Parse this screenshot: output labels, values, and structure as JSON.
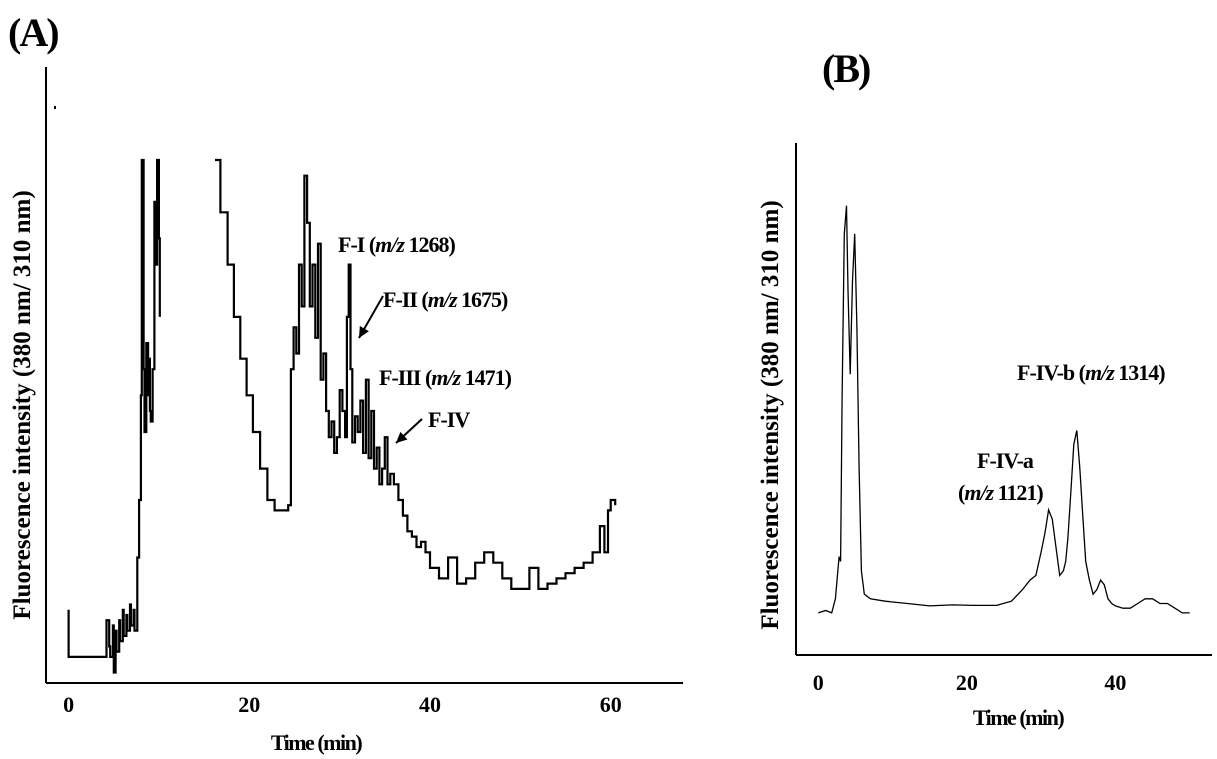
{
  "panels": {
    "A": {
      "label": "(A)"
    },
    "B": {
      "label": "(B)"
    }
  },
  "chart_data": [
    {
      "type": "line",
      "panel": "(A)",
      "xlabel": "Time (min)",
      "ylabel": "Fluorescence intensity (380 nm/ 310 nm)",
      "xticks": [
        0,
        20,
        40,
        60
      ],
      "xlim": [
        -2.5,
        68
      ],
      "ylim": [
        0,
        100
      ],
      "annotations": [
        {
          "text_pre": "F-I (",
          "text_ital": "m/z",
          "text_post": " 1268)",
          "x": 30.7,
          "y": 73
        },
        {
          "text_pre": "F-II (",
          "text_ital": "m/z",
          "text_post": " 1675)",
          "x": 31,
          "y": 64
        },
        {
          "text_pre": "F-III (",
          "text_ital": "m/z",
          "text_post": " 1471)",
          "x": 32.9,
          "y": 57
        },
        {
          "text_pre": "F-IV",
          "text_ital": "",
          "text_post": "",
          "x": 35,
          "y": 44
        }
      ],
      "series": [
        {
          "x": [
            0,
            0,
            0.3,
            4.1,
            4.2,
            4.5,
            4.6,
            4.9,
            5.0,
            5.2,
            5.3,
            5.6,
            5.7,
            6.0,
            6.1,
            6.4,
            6.5,
            6.8,
            6.9,
            7.2,
            7.3,
            7.6,
            7.8,
            8.0,
            8.1,
            8.3,
            8.4,
            8.6,
            8.8,
            8.9,
            9.0,
            9.1,
            9.3,
            9.5,
            9.6,
            9.8,
            10.0,
            10.1
          ],
          "y": [
            14,
            5,
            5,
            5,
            12,
            7,
            5,
            11,
            2,
            10,
            6,
            12,
            8,
            14,
            9,
            13,
            10,
            15,
            11,
            14,
            10,
            24,
            35,
            55,
            100,
            60,
            48,
            65,
            55,
            62,
            52,
            50,
            60,
            92,
            80,
            100,
            85,
            70
          ]
        },
        {
          "x": [
            16.2,
            16.8,
            17.6,
            18.3,
            19.0,
            19.7,
            20.4,
            21.2,
            22.0,
            22.8,
            23.6,
            24.3,
            24.6,
            24.9,
            25.2,
            25.5,
            25.8,
            26.1,
            26.4,
            26.7,
            27.0,
            27.3,
            27.6,
            27.9,
            28.2,
            28.5,
            28.8,
            29.1,
            29.4,
            29.7,
            30.0,
            30.3,
            30.6,
            30.8,
            31.0,
            31.2,
            31.4,
            31.7,
            32.0,
            32.3,
            32.6,
            32.9,
            33.2,
            33.5,
            33.8,
            34.1,
            34.4,
            34.7,
            35.0,
            35.3,
            35.6,
            36.0,
            36.5,
            37.0,
            37.5,
            38.0,
            38.5,
            39.0,
            39.5,
            40.0,
            41.0,
            42.0,
            43.0,
            44.0,
            45.0,
            46.0,
            47.0,
            48.0,
            49.0,
            50.0,
            51.0,
            52.0,
            53.0,
            54.0,
            55.0,
            56.0,
            57.0,
            58.0,
            58.8,
            59.3,
            59.7,
            60.0,
            60.5
          ],
          "y": [
            100,
            90,
            80,
            70,
            62,
            55,
            48,
            41,
            35,
            33,
            33,
            34,
            60,
            68,
            63,
            80,
            72,
            97,
            88,
            72,
            80,
            66,
            84,
            58,
            63,
            52,
            47,
            50,
            44,
            47,
            56,
            52,
            47,
            70,
            80,
            60,
            46,
            51,
            48,
            54,
            44,
            58,
            43,
            52,
            41,
            45,
            38,
            41,
            47,
            38,
            40,
            38,
            35,
            32,
            29,
            28,
            26,
            27,
            25,
            22,
            20,
            24,
            19,
            20,
            23,
            25,
            23,
            20,
            18,
            18,
            22,
            18,
            19,
            20,
            21,
            22,
            23,
            25,
            30,
            25,
            33,
            35,
            34
          ]
        }
      ]
    },
    {
      "type": "line",
      "panel": "(B)",
      "xlabel": "Time (min)",
      "ylabel": "Fluorescence intensity (380 nm/ 310 nm)",
      "xticks": [
        0,
        20,
        40
      ],
      "xlim": [
        -3,
        53
      ],
      "ylim": [
        0,
        100
      ],
      "annotations": [
        {
          "line1": "F-IV-b (",
          "ital1": "m/z",
          "post1": " 1314)",
          "x": 34.8,
          "y": 52
        },
        {
          "line1": "F-IV-a",
          "line2_pre": "(",
          "ital2": "m/z",
          "post2": " 1121)",
          "x": 31.5,
          "y": 29
        }
      ],
      "series": [
        {
          "x": [
            0,
            1.0,
            1.8,
            2.3,
            2.8,
            3.0,
            3.2,
            3.5,
            3.8,
            4.0,
            4.3,
            4.6,
            4.9,
            5.2,
            5.5,
            5.8,
            6.2,
            7.0,
            9.0,
            12.0,
            15.0,
            18.0,
            21.0,
            24.0,
            26.0,
            27.5,
            28.5,
            29.3,
            30.0,
            30.5,
            31.0,
            31.5,
            32.0,
            32.5,
            33.0,
            33.3,
            33.6,
            34.0,
            34.4,
            34.8,
            35.2,
            35.6,
            36.0,
            36.5,
            37.0,
            37.5,
            38.0,
            38.5,
            39.0,
            39.5,
            40.0,
            41.0,
            42.0,
            43.0,
            44.0,
            45.0,
            46.0,
            47.0,
            48.0,
            49.0,
            50.0
          ],
          "y": [
            9,
            9.5,
            9,
            12,
            21,
            20,
            55,
            90,
            96,
            78,
            60,
            80,
            90,
            70,
            40,
            18,
            13,
            12,
            11.5,
            11,
            10.5,
            10.7,
            10.6,
            10.6,
            11.5,
            14,
            16,
            17,
            22,
            26,
            31,
            29,
            23,
            17,
            18,
            20,
            25,
            35,
            45,
            48,
            40,
            30,
            20,
            16,
            13,
            14,
            16,
            15,
            12,
            11,
            10.5,
            10,
            10,
            11,
            12,
            12,
            11,
            11,
            10,
            9,
            9
          ]
        }
      ]
    }
  ]
}
